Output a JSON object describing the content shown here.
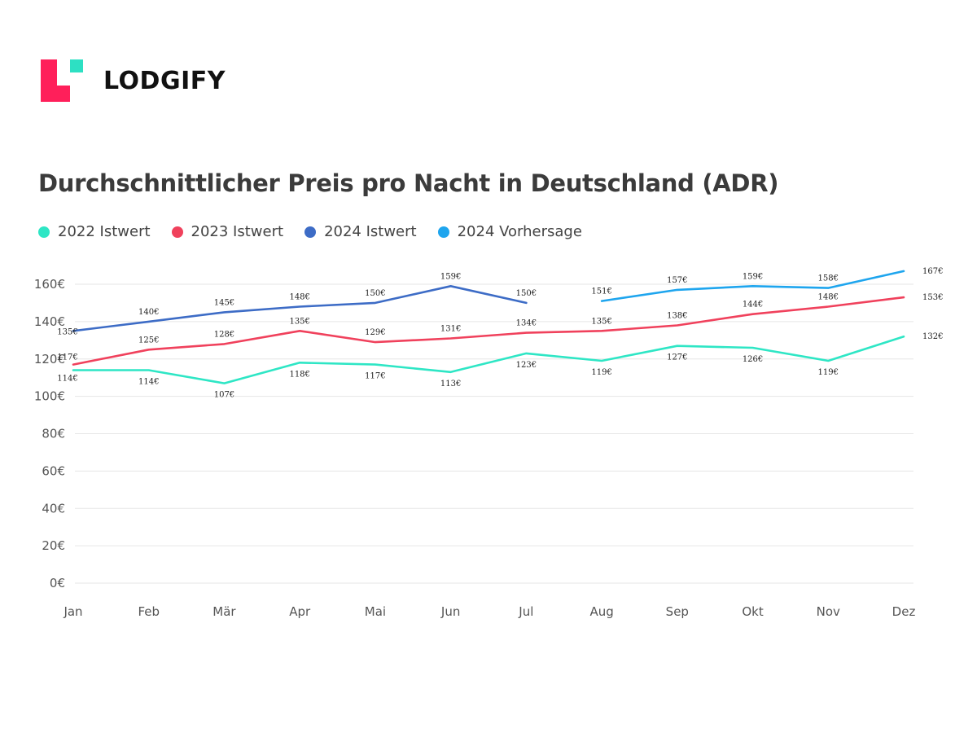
{
  "brand": {
    "name": "LODGIFY",
    "colors": {
      "pink": "#ff1f5a",
      "teal": "#2de0c3"
    }
  },
  "chart_data": {
    "type": "line",
    "title": "Durchschnittlicher Preis pro Nacht in Deutschland (ADR)",
    "xlabel": "",
    "ylabel": "",
    "categories": [
      "Jan",
      "Feb",
      "Mär",
      "Apr",
      "Mai",
      "Jun",
      "Jul",
      "Aug",
      "Sep",
      "Okt",
      "Nov",
      "Dez"
    ],
    "y_ticks": [
      "0€",
      "20€",
      "40€",
      "60€",
      "80€",
      "100€",
      "120€",
      "140€",
      "160€"
    ],
    "ylim": [
      0,
      160
    ],
    "grid": true,
    "legend_position": "top-left",
    "series": [
      {
        "name": "2022 Istwert",
        "color": "#2ee6c5",
        "values": [
          114,
          114,
          107,
          118,
          117,
          113,
          123,
          119,
          127,
          126,
          119,
          132
        ],
        "labels": [
          "114€",
          "114€",
          "107€",
          "118€",
          "117€",
          "113€",
          "123€",
          "119€",
          "127€",
          "126€",
          "119€",
          "132€"
        ]
      },
      {
        "name": "2023 Istwert",
        "color": "#f0415c",
        "values": [
          117,
          125,
          128,
          135,
          129,
          131,
          134,
          135,
          138,
          144,
          148,
          153
        ],
        "labels": [
          "117€",
          "125€",
          "128€",
          "135€",
          "129€",
          "131€",
          "134€",
          "135€",
          "138€",
          "144€",
          "148€",
          "153€"
        ]
      },
      {
        "name": "2024 Istwert",
        "color": "#3d6cc6",
        "values": [
          135,
          140,
          145,
          148,
          150,
          159,
          150,
          null,
          null,
          null,
          null,
          null
        ],
        "labels": [
          "135€",
          "140€",
          "145€",
          "148€",
          "150€",
          "159€",
          "150€",
          null,
          null,
          null,
          null,
          null
        ]
      },
      {
        "name": "2024 Vorhersage",
        "color": "#1ea5ee",
        "values": [
          null,
          null,
          null,
          null,
          null,
          null,
          null,
          151,
          157,
          159,
          158,
          167
        ],
        "labels": [
          null,
          null,
          null,
          null,
          null,
          null,
          null,
          "151€",
          "157€",
          "159€",
          "158€",
          "167€"
        ]
      }
    ]
  }
}
